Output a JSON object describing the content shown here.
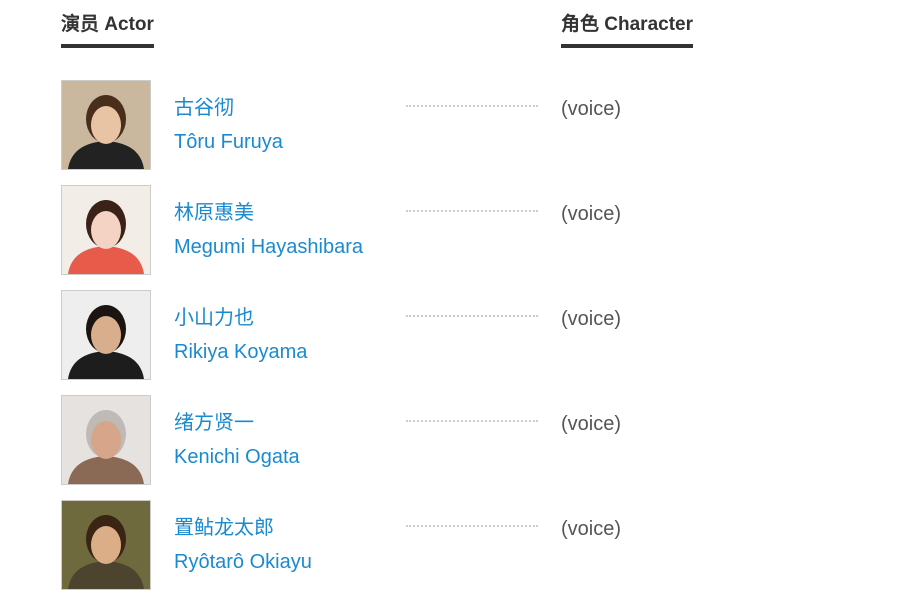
{
  "headers": {
    "actor": "演员 Actor",
    "character": "角色 Character"
  },
  "cast": [
    {
      "name_cn": "古谷彻",
      "name_en": "Tôru Furuya",
      "role": "(voice)",
      "photo": {
        "bg": "#c9b79e",
        "hair": "#4a2e1c",
        "skin": "#e8c3a4",
        "cloth": "#222"
      }
    },
    {
      "name_cn": "林原惠美",
      "name_en": "Megumi Hayashibara",
      "role": "(voice)",
      "photo": {
        "bg": "#f3ede8",
        "hair": "#3b2218",
        "skin": "#f4d3c4",
        "cloth": "#e85a4a"
      }
    },
    {
      "name_cn": "小山力也",
      "name_en": "Rikiya Koyama",
      "role": "(voice)",
      "photo": {
        "bg": "#eeeeee",
        "hair": "#1b1410",
        "skin": "#d9ae8c",
        "cloth": "#1d1d1d"
      }
    },
    {
      "name_cn": "绪方贤一",
      "name_en": "Kenichi Ogata",
      "role": "(voice)",
      "photo": {
        "bg": "#e6e2df",
        "hair": "#bfbab5",
        "skin": "#d6a58a",
        "cloth": "#8a6a55"
      }
    },
    {
      "name_cn": "置鲇龙太郎",
      "name_en": "Ryôtarô Okiayu",
      "role": "(voice)",
      "photo": {
        "bg": "#6f6a3e",
        "hair": "#3a2414",
        "skin": "#dcae88",
        "cloth": "#4d4430"
      }
    }
  ]
}
